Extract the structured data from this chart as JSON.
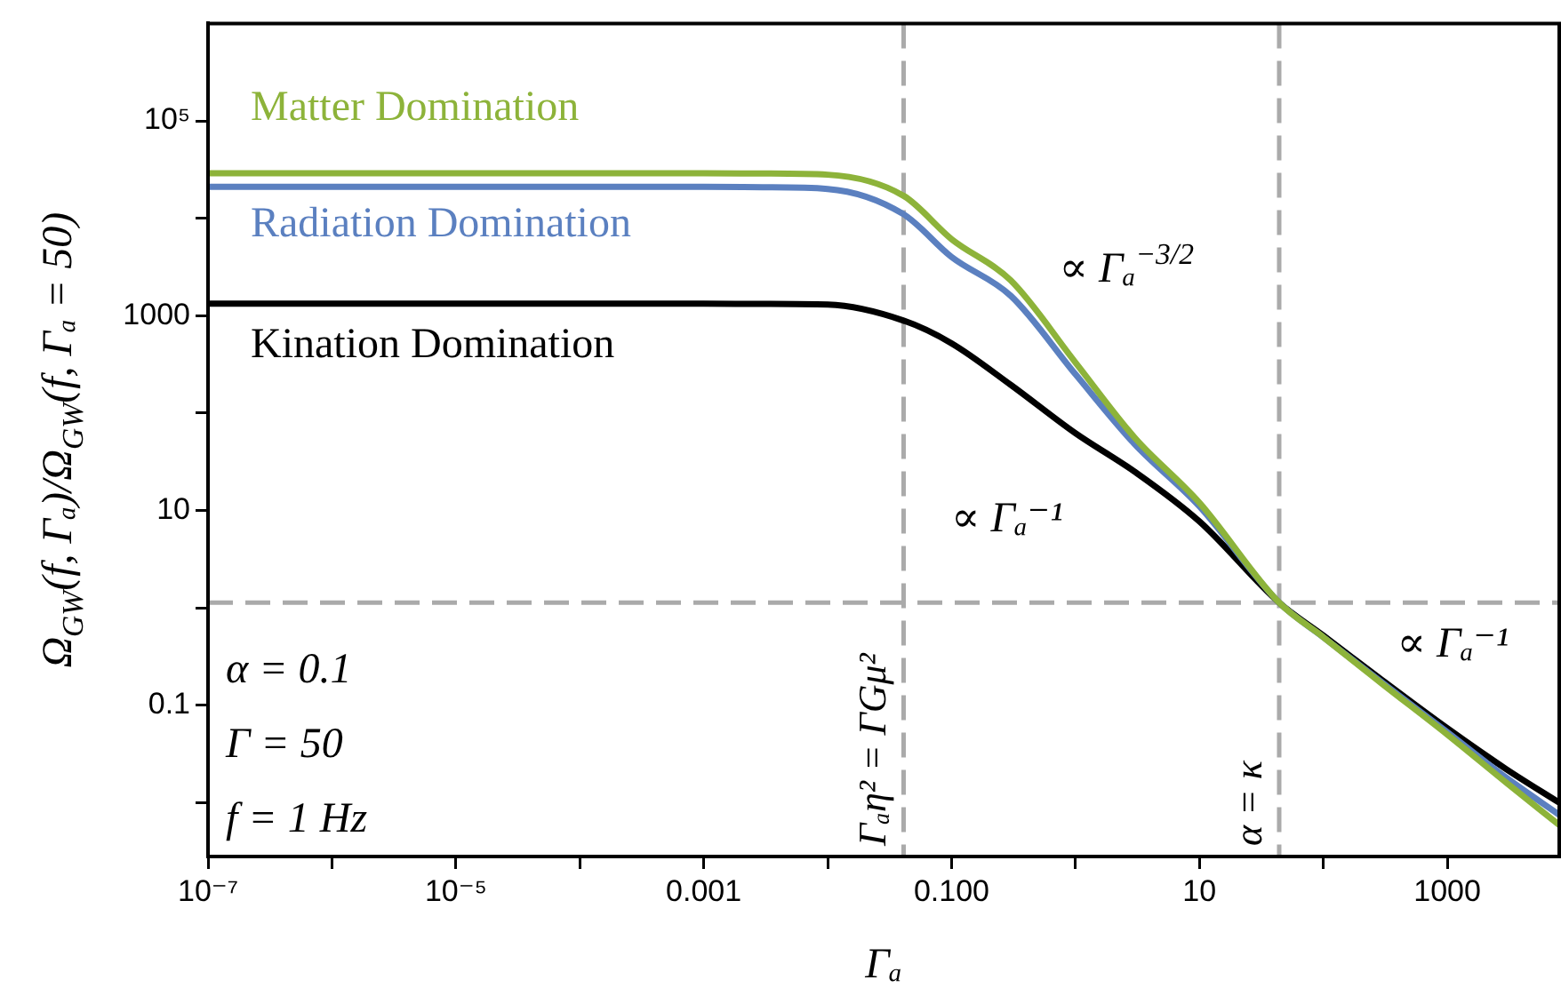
{
  "chart_data": {
    "type": "line",
    "x": [
      1e-07,
      1e-05,
      0.001,
      0.003,
      0.01,
      0.041,
      0.1,
      0.3,
      1,
      3,
      10,
      44,
      100,
      300,
      1000,
      3000,
      8000
    ],
    "series": [
      {
        "name": "Matter Domination",
        "color": "#8db33a",
        "values": [
          29000,
          29000,
          29000,
          28800,
          28000,
          17000,
          6100,
          2300,
          330,
          56,
          12,
          1.13,
          0.5,
          0.165,
          0.05,
          0.016,
          0.0059
        ]
      },
      {
        "name": "Radiation Domination",
        "color": "#5b80c0",
        "values": [
          21000,
          21000,
          21000,
          20800,
          20000,
          11000,
          4000,
          1600,
          250,
          48,
          11,
          1.13,
          0.5,
          0.17,
          0.053,
          0.018,
          0.0075
        ]
      },
      {
        "name": "Kination Domination",
        "color": "#000000",
        "values": [
          1330,
          1330,
          1330,
          1320,
          1300,
          890,
          520,
          195,
          62,
          25,
          7.7,
          1.13,
          0.52,
          0.18,
          0.058,
          0.022,
          0.01
        ]
      }
    ],
    "xlabel": "Γₐ",
    "ylabel": "Ω$_{GW}$(f, Γₐ)/Ω$_{GW}$(f, Γₐ = 50)",
    "log": "xy",
    "xlim": [
      1e-07,
      8000
    ],
    "ylim": [
      0.0028,
      1000000
    ],
    "xticks": [
      {
        "value": 1e-07,
        "label": "10⁻⁷"
      },
      {
        "value": 1e-06,
        "label": null
      },
      {
        "value": 1e-05,
        "label": "10⁻⁵"
      },
      {
        "value": 0.0001,
        "label": null
      },
      0.001,
      {
        "value": 0.01,
        "label": null
      },
      {
        "value": 0.1,
        "label": "0.100"
      },
      {
        "value": 1,
        "label": null
      },
      10,
      {
        "value": 100,
        "label": null
      },
      1000
    ],
    "yticks": [
      {
        "value": 0.01,
        "label": null
      },
      0.1,
      {
        "value": 1,
        "label": null
      },
      10,
      {
        "value": 100,
        "label": null
      },
      1000,
      {
        "value": 10000,
        "label": null
      },
      {
        "value": 100000,
        "label": "10⁵"
      }
    ],
    "ref_lines": [
      {
        "axis": "x",
        "value": 0.041,
        "label": "Γₐη² = ΓGμ²",
        "color": "#aaaaaa",
        "line_style": "dashed"
      },
      {
        "axis": "x",
        "value": 44,
        "label": "α = κ",
        "color": "#aaaaaa",
        "line_style": "dashed"
      },
      {
        "axis": "y",
        "value": 1.13,
        "color": "#aaaaaa",
        "line_style": "dashed"
      }
    ],
    "annotations": [
      "∝ Γₐ$^{−3/2}$",
      "∝ Γₐ⁻¹",
      "∝ Γₐ⁻¹",
      "α = 0.1",
      "Γ = 50",
      "f = 1 Hz"
    ],
    "marker": "none",
    "legend": false,
    "grid": false
  }
}
